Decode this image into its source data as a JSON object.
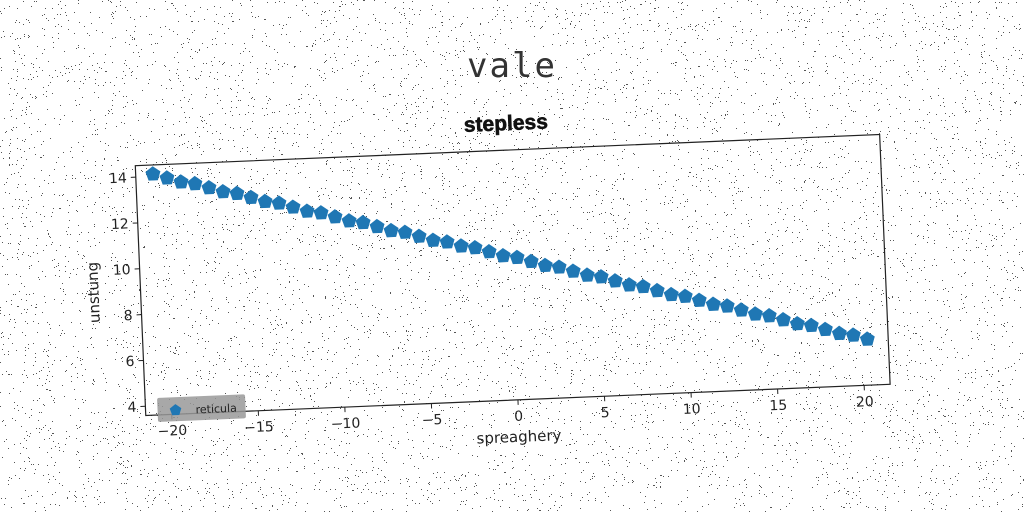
{
  "suptitle": "vale",
  "chart_data": {
    "type": "scatter",
    "title": "stepless",
    "xlabel": "spreaghery",
    "ylabel": "unstung",
    "xlim": [
      -21.5,
      21.5
    ],
    "ylim": [
      3.6,
      14.5
    ],
    "xticks": [
      -20,
      -15,
      -10,
      -5,
      0,
      5,
      10,
      15,
      20
    ],
    "yticks": [
      4,
      6,
      8,
      10,
      12,
      14
    ],
    "xtick_labels": [
      "−20",
      "−15",
      "−10",
      "−5",
      "0",
      "5",
      "10",
      "15",
      "20"
    ],
    "ytick_labels": [
      "4",
      "6",
      "8",
      "10",
      "12",
      "14"
    ],
    "legend_position": "lower-left",
    "grid": false,
    "series": [
      {
        "name": "reticula",
        "color": "#1f77b4",
        "marker": "pentagon",
        "x": [
          -20.5,
          -19.7,
          -18.9,
          -18.1,
          -17.3,
          -16.5,
          -15.7,
          -14.9,
          -14.1,
          -13.3,
          -12.5,
          -11.7,
          -10.9,
          -10.1,
          -9.3,
          -8.5,
          -7.7,
          -6.9,
          -6.1,
          -5.3,
          -4.5,
          -3.7,
          -2.9,
          -2.1,
          -1.3,
          -0.5,
          0.3,
          1.1,
          1.9,
          2.7,
          3.5,
          4.3,
          5.1,
          5.9,
          6.7,
          7.5,
          8.3,
          9.1,
          9.9,
          10.7,
          11.5,
          12.3,
          13.1,
          13.9,
          14.7,
          15.5,
          16.3,
          17.1,
          17.9,
          18.7,
          19.5,
          20.3
        ],
        "y": [
          14.1,
          13.9,
          13.7,
          13.6,
          13.4,
          13.2,
          13.1,
          12.9,
          12.7,
          12.6,
          12.4,
          12.2,
          12.1,
          11.9,
          11.7,
          11.6,
          11.4,
          11.2,
          11.1,
          10.9,
          10.7,
          10.6,
          10.4,
          10.3,
          10.1,
          9.9,
          9.8,
          9.6,
          9.4,
          9.3,
          9.1,
          8.9,
          8.8,
          8.6,
          8.4,
          8.3,
          8.1,
          7.9,
          7.8,
          7.6,
          7.4,
          7.3,
          7.1,
          6.9,
          6.8,
          6.6,
          6.4,
          6.3,
          6.1,
          5.9,
          5.8,
          5.6
        ]
      }
    ]
  }
}
